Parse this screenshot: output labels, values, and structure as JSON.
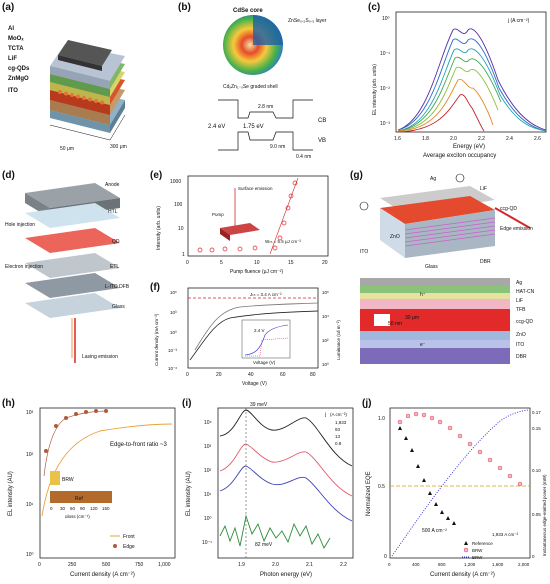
{
  "panels": {
    "a": {
      "label": "(a)",
      "layers": [
        "Al",
        "MoOₓ",
        "TCTA",
        "LiF",
        "cg-QDs",
        "ZnMgO",
        "ITO"
      ],
      "dim1": "50 μm",
      "dim2": "300 μm"
    },
    "b": {
      "label": "(b)",
      "core": "CdSe core",
      "layer": "ZnSe₀.₅S₀.₅ layer",
      "shell": "CdₓZn₁₋ₓSe graded shell",
      "cb": "CB",
      "vb": "VB",
      "e1": "2.4 eV",
      "e2": "1.75 eV",
      "d1": "2.8 nm",
      "d2": "9.0 nm",
      "d3": "0.4 nm"
    },
    "c": {
      "label": "(c)",
      "ylabel": "EL intensity (arb. units)",
      "xlabel": "Energy (eV)",
      "xlabel2": "Average exciton occupancy",
      "legend_title": "j (A cm⁻²)",
      "xticks": [
        "1.6",
        "1.8",
        "2.0",
        "2.2",
        "2.4",
        "2.6"
      ],
      "yticks": [
        "10⁰",
        "10⁻¹",
        "10⁻²",
        "10⁻³"
      ]
    },
    "d": {
      "label": "(d)",
      "anode": "Anode",
      "htl": "HTL",
      "hole": "Hole injection",
      "qd": "QD",
      "etl": "ETL",
      "electron": "Electron injection",
      "dfb": "L-ITO DFB",
      "glass": "Glass",
      "lasing": "Lasing emission"
    },
    "e": {
      "label": "(e)",
      "ylabel": "Intensity (arb. units)",
      "xlabel": "Pump fluence (μJ cm⁻²)",
      "xticks": [
        "0",
        "5",
        "10",
        "15",
        "20"
      ],
      "yticks": [
        "1000",
        "100",
        "10",
        "1"
      ],
      "surface": "Surface emission",
      "pump": "Pump",
      "wth": "Wₜₕ = 5.5 μJ cm⁻²"
    },
    "f": {
      "label": "(f)",
      "ylabel": "Current density (mA cm⁻²)",
      "ylabel2": "Luminance (cd m⁻²)",
      "xlabel": "Voltage (V)",
      "xticks": [
        "0",
        "20",
        "40",
        "60",
        "80"
      ],
      "yticks": [
        "10⁶",
        "10³",
        "10⁰",
        "10⁻³",
        "10⁻⁶"
      ],
      "yticks2": [
        "10⁶",
        "10⁴",
        "10²",
        "10⁰"
      ],
      "jth": "Jₜₕ = 3.4 A cm⁻²",
      "inset_v": "2.4 V",
      "inset_x": "Voltage (V)"
    },
    "g": {
      "label": "(g)",
      "ag": "Ag",
      "lif": "LiF",
      "ccg": "ccg-QD",
      "ito": "ITO",
      "zno": "ZnO",
      "glass": "Glass",
      "edge": "Edge emission",
      "dbr": "DBR",
      "stack": [
        "Ag",
        "HAT-CN",
        "LiF",
        "TFB",
        "ccg-QD",
        "ZnO",
        "ITO",
        "DBR"
      ],
      "w30": "30 μm",
      "w50": "50 nm",
      "hplus": "h⁺",
      "eminus": "e⁻"
    },
    "h": {
      "label": "(h)",
      "ylabel": "EL intensity (AU)",
      "xlabel": "Current density (A cm⁻²)",
      "ratio": "Edge-to-front ratio ~3",
      "brw": "BRW",
      "ref": "Ref",
      "inset_x": "αloss (cm⁻¹)",
      "inset_ticks": [
        "0",
        "30",
        "60",
        "90",
        "120",
        "150"
      ],
      "legend": [
        "Front",
        "Edge"
      ],
      "xticks": [
        "0",
        "250",
        "500",
        "750",
        "1,000"
      ],
      "yticks": [
        "10³",
        "10²",
        "10¹",
        "10⁰"
      ]
    },
    "i": {
      "label": "(i)",
      "ylabel": "EL intensity (AU)",
      "xlabel": "Photon energy (eV)",
      "legend_title": "j",
      "legend_unit": "(A cm⁻²)",
      "legend": [
        "1,933",
        "93",
        "13",
        "0.8"
      ],
      "ann1": "39 meV",
      "ann2": "82 meV",
      "xticks": [
        "1.9",
        "2.0",
        "2.1",
        "2.2"
      ],
      "yticks": [
        "10⁴",
        "10³",
        "10²",
        "10¹",
        "10⁰",
        "10⁻¹"
      ]
    },
    "j": {
      "label": "(j)",
      "ylabel": "Normalized EQE",
      "ylabel2": "Instantaneous edge-emitted power (mW)",
      "xlabel": "Current density (A cm⁻²)",
      "ann1": "500 A cm⁻²",
      "ann2": "1,933 A cm⁻²",
      "legend": [
        "Reference",
        "BRW",
        "BRW"
      ],
      "xticks": [
        "0",
        "400",
        "800",
        "1,200",
        "1,600",
        "2,000"
      ],
      "yticks": [
        "0",
        "0.5",
        "1.0"
      ],
      "yticks2": [
        "0",
        "0.05",
        "0.10",
        "0.15"
      ],
      "y2top": "0.17"
    }
  },
  "colors": {
    "red": "#d8262d",
    "orange": "#e9a23a",
    "pink": "#f3b6c8",
    "brown": "#b05a3a",
    "blue": "#2a2ad0",
    "purple": "#7b2aa8",
    "green": "#2e8b3a",
    "gold": "#d4a017"
  }
}
